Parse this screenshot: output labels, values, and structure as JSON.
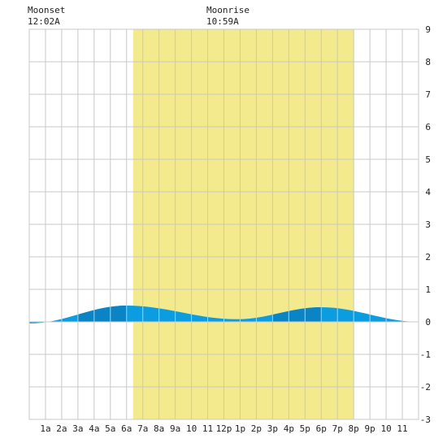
{
  "moon": {
    "moonset_label": "Moonset",
    "moonset_time": "12:02A",
    "moonrise_label": "Moonrise",
    "moonrise_time": "10:59A"
  },
  "colors": {
    "daylight": "#f3ea8e",
    "tide_light": "#0b9de0",
    "tide_dark": "#0a84c4",
    "grid": "#c8c8c8",
    "background": "#ffffff"
  },
  "chart_data": {
    "type": "area",
    "title": "",
    "xlabel": "",
    "ylabel": "",
    "x_ticks": [
      "1a",
      "2a",
      "3a",
      "4a",
      "5a",
      "6a",
      "7a",
      "8a",
      "9a",
      "10",
      "11",
      "12p",
      "1p",
      "2p",
      "3p",
      "4p",
      "5p",
      "6p",
      "7p",
      "8p",
      "9p",
      "10",
      "11"
    ],
    "xlim_hours": [
      0,
      24
    ],
    "ylim": [
      -3,
      9
    ],
    "y_ticks": [
      "-3",
      "-2",
      "-1",
      "0",
      "1",
      "2",
      "3",
      "4",
      "5",
      "6",
      "7",
      "8",
      "9"
    ],
    "grid": true,
    "daylight_hours": [
      6.4,
      20.0
    ],
    "tide_extrema": [
      {
        "hour": 0.0,
        "height": -0.05
      },
      {
        "hour": 6.0,
        "height": 0.5
      },
      {
        "hour": 12.8,
        "height": 0.08
      },
      {
        "hour": 18.0,
        "height": 0.45
      },
      {
        "hour": 24.0,
        "height": 0.0
      }
    ],
    "dark_bands_hours": [
      [
        3,
        6
      ],
      [
        15,
        18
      ]
    ]
  }
}
